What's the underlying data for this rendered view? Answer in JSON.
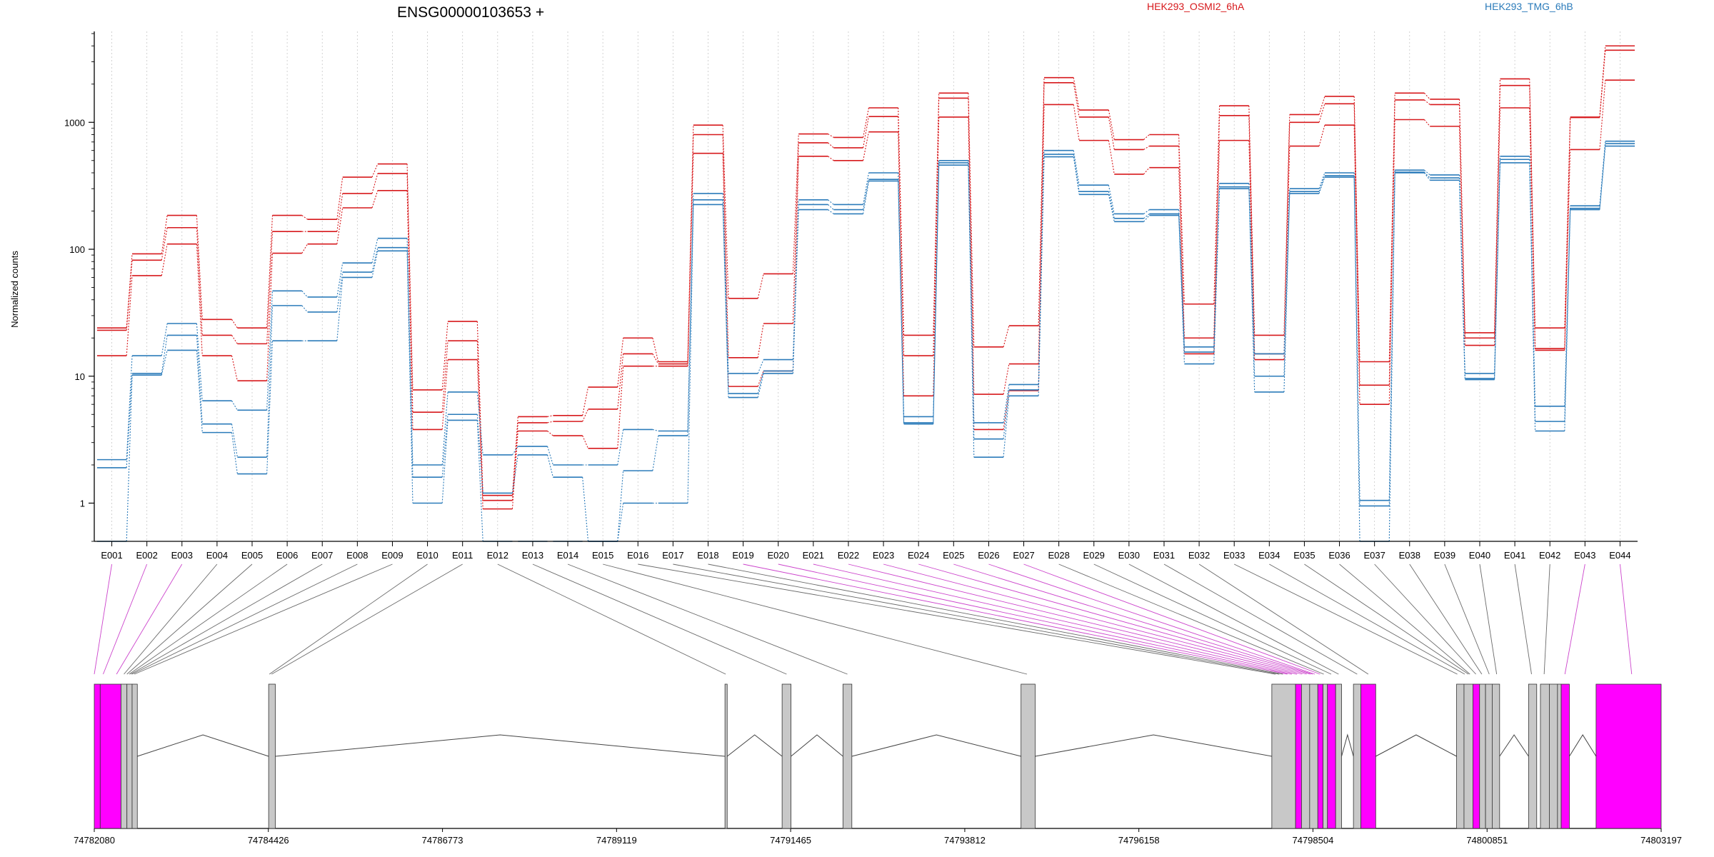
{
  "colors": {
    "series_a": "#d7191c",
    "series_b": "#2b7bba",
    "exon_box": "#c8c8c8",
    "exon_highlight": "#ff00ff",
    "connector": "#6a6a6a",
    "connector_highlight": "#cc44cc",
    "grid": "#c8c8c8"
  },
  "chart_data": {
    "type": "line",
    "title": "ENSG00000103653 +",
    "ylabel": "Normalized counts",
    "yscale": "log",
    "ylim": [
      0.5,
      5200
    ],
    "yticks": [
      1,
      10,
      100,
      1000
    ],
    "ytick_labels": [
      "1",
      "10",
      "100",
      "1000"
    ],
    "grid": "vertical dotted",
    "legend_position": "top",
    "categories": [
      "E001",
      "E002",
      "E003",
      "E004",
      "E005",
      "E006",
      "E007",
      "E008",
      "E009",
      "E010",
      "E011",
      "E012",
      "E013",
      "E014",
      "E015",
      "E016",
      "E017",
      "E018",
      "E019",
      "E020",
      "E021",
      "E022",
      "E023",
      "E024",
      "E025",
      "E026",
      "E027",
      "E028",
      "E029",
      "E030",
      "E031",
      "E032",
      "E033",
      "E034",
      "E035",
      "E036",
      "E037",
      "E038",
      "E039",
      "E040",
      "E041",
      "E042",
      "E043",
      "E044"
    ],
    "series": [
      {
        "name": "HEK293_OSMI2_6hA",
        "color_key": "series_a",
        "replicates": [
          [
            24,
            92,
            185,
            28,
            24,
            185,
            172,
            370,
            470,
            7.8,
            27,
            1.15,
            4.8,
            4.9,
            8.2,
            20,
            13,
            950,
            41,
            64,
            810,
            760,
            1300,
            21,
            1700,
            17,
            25,
            2250,
            1250,
            730,
            800,
            37,
            1350,
            21,
            1150,
            1600,
            13,
            1700,
            1520,
            22,
            2200,
            24,
            1100,
            4000
          ],
          [
            23,
            82,
            148,
            21,
            18,
            138,
            138,
            275,
            395,
            5.2,
            19,
            1.05,
            4.3,
            4.4,
            5.5,
            15,
            12.5,
            800,
            14,
            26,
            690,
            630,
            1110,
            14.5,
            1550,
            7.2,
            12.5,
            2050,
            1100,
            610,
            650,
            20,
            1130,
            15,
            1000,
            1400,
            8.5,
            1500,
            1380,
            20,
            1950,
            16.5,
            1090,
            3700
          ],
          [
            14.5,
            62,
            110,
            14.5,
            9.2,
            93,
            110,
            212,
            290,
            3.8,
            13.5,
            0.9,
            3.7,
            3.4,
            2.7,
            12,
            12,
            570,
            8.3,
            11,
            540,
            500,
            840,
            7,
            1100,
            3.8,
            7.7,
            1380,
            720,
            390,
            440,
            15,
            720,
            13.5,
            650,
            950,
            6,
            1050,
            930,
            17.5,
            1300,
            16,
            610,
            2150
          ]
        ]
      },
      {
        "name": "HEK293_TMG_6hB",
        "color_key": "series_b",
        "replicates": [
          [
            2.2,
            14.5,
            26,
            6.4,
            5.4,
            47,
            42,
            78,
            122,
            2.0,
            7.5,
            2.4,
            2.8,
            2.0,
            2.0,
            3.8,
            3.7,
            275,
            10.5,
            13.5,
            245,
            225,
            400,
            4.8,
            500,
            4.3,
            8.6,
            600,
            320,
            190,
            205,
            17,
            330,
            15,
            300,
            400,
            1.05,
            420,
            385,
            10.5,
            540,
            5.8,
            220,
            710
          ],
          [
            1.9,
            10.5,
            21,
            4.2,
            2.3,
            36,
            32,
            66,
            103,
            1.6,
            5,
            1.2,
            2.4,
            1.6,
            0.5,
            1.8,
            3.4,
            245,
            7.3,
            11,
            225,
            205,
            355,
            4.2,
            480,
            3.2,
            7.8,
            560,
            285,
            175,
            190,
            15.5,
            310,
            10,
            285,
            380,
            0.95,
            405,
            365,
            9.6,
            510,
            4.4,
            210,
            680
          ],
          [
            0.5,
            10.2,
            16,
            3.6,
            1.7,
            19,
            19,
            60,
            97,
            1.0,
            4.5,
            0.5,
            0.5,
            0.5,
            0.5,
            1.0,
            1.0,
            225,
            6.8,
            10.5,
            205,
            190,
            345,
            4.3,
            460,
            2.3,
            7.0,
            535,
            270,
            165,
            185,
            12.5,
            300,
            7.5,
            275,
            370,
            0.5,
            400,
            350,
            9.4,
            480,
            3.7,
            205,
            650
          ]
        ]
      }
    ],
    "genome": {
      "range": [
        74782080,
        74803197
      ],
      "tick_values": [
        74782080,
        74784426,
        74786773,
        74789119,
        74791465,
        74793812,
        74796158,
        74798504,
        74800851,
        74803197
      ],
      "tick_labels": [
        "74782080",
        "74784426",
        "74786773",
        "74789119",
        "74791465",
        "74793812",
        "74796158",
        "74798504",
        "74800851",
        "74803197"
      ],
      "exons": [
        {
          "start": 74782080,
          "end": 74782160,
          "hl": true
        },
        {
          "start": 74782160,
          "end": 74782440,
          "hl": true
        },
        {
          "start": 74782440,
          "end": 74782520,
          "hl": false
        },
        {
          "start": 74782520,
          "end": 74782590,
          "hl": false
        },
        {
          "start": 74782590,
          "end": 74782660,
          "hl": false
        },
        {
          "start": 74784430,
          "end": 74784520,
          "hl": false
        },
        {
          "start": 74790580,
          "end": 74790610,
          "hl": false
        },
        {
          "start": 74791350,
          "end": 74791470,
          "hl": false
        },
        {
          "start": 74792170,
          "end": 74792290,
          "hl": false
        },
        {
          "start": 74794570,
          "end": 74794760,
          "hl": false
        },
        {
          "start": 74797950,
          "end": 74798270,
          "hl": false
        },
        {
          "start": 74798270,
          "end": 74798350,
          "hl": true
        },
        {
          "start": 74798350,
          "end": 74798460,
          "hl": false
        },
        {
          "start": 74798460,
          "end": 74798570,
          "hl": false
        },
        {
          "start": 74798570,
          "end": 74798640,
          "hl": true
        },
        {
          "start": 74798640,
          "end": 74798700,
          "hl": false
        },
        {
          "start": 74798700,
          "end": 74798810,
          "hl": true
        },
        {
          "start": 74798810,
          "end": 74798890,
          "hl": false
        },
        {
          "start": 74799050,
          "end": 74799150,
          "hl": false
        },
        {
          "start": 74799150,
          "end": 74799350,
          "hl": true
        },
        {
          "start": 74800440,
          "end": 74800540,
          "hl": false
        },
        {
          "start": 74800540,
          "end": 74800660,
          "hl": false
        },
        {
          "start": 74800660,
          "end": 74800750,
          "hl": true
        },
        {
          "start": 74800750,
          "end": 74800830,
          "hl": false
        },
        {
          "start": 74800830,
          "end": 74800920,
          "hl": false
        },
        {
          "start": 74800920,
          "end": 74801020,
          "hl": false
        },
        {
          "start": 74801410,
          "end": 74801520,
          "hl": false
        },
        {
          "start": 74801570,
          "end": 74801690,
          "hl": false
        },
        {
          "start": 74801690,
          "end": 74801800,
          "hl": false
        },
        {
          "start": 74801800,
          "end": 74801850,
          "hl": false
        },
        {
          "start": 74801850,
          "end": 74801960,
          "hl": true
        },
        {
          "start": 74802320,
          "end": 74803197,
          "hl": true
        }
      ],
      "introns": [
        [
          74782660,
          74784430
        ],
        [
          74784520,
          74790580
        ],
        [
          74790610,
          74791350
        ],
        [
          74791470,
          74792170
        ],
        [
          74792290,
          74794570
        ],
        [
          74794760,
          74797950
        ],
        [
          74798890,
          74799050
        ],
        [
          74799350,
          74800440
        ],
        [
          74801020,
          74801410
        ],
        [
          74801960,
          74802320
        ]
      ],
      "bin_positions": [
        74782080,
        74782200,
        74782380,
        74782480,
        74782520,
        74782550,
        74782570,
        74782590,
        74782620,
        74784440,
        74784470,
        74790590,
        74791410,
        74792230,
        74794650,
        74798000,
        74798050,
        74798100,
        74798160,
        74798220,
        74798290,
        74798360,
        74798420,
        74798470,
        74798500,
        74798530,
        74798600,
        74798650,
        74798750,
        74798850,
        74799100,
        74799250,
        74800450,
        74800550,
        74800600,
        74800620,
        74800700,
        74800780,
        74800880,
        74800980,
        74801450,
        74801620,
        74801900,
        74802800
      ],
      "bin_highlight": [
        true,
        true,
        true,
        false,
        false,
        false,
        false,
        false,
        false,
        false,
        false,
        false,
        false,
        false,
        false,
        false,
        false,
        false,
        true,
        true,
        true,
        true,
        true,
        true,
        true,
        true,
        true,
        false,
        false,
        false,
        false,
        false,
        false,
        false,
        false,
        false,
        false,
        false,
        false,
        false,
        false,
        false,
        true,
        true
      ]
    }
  }
}
